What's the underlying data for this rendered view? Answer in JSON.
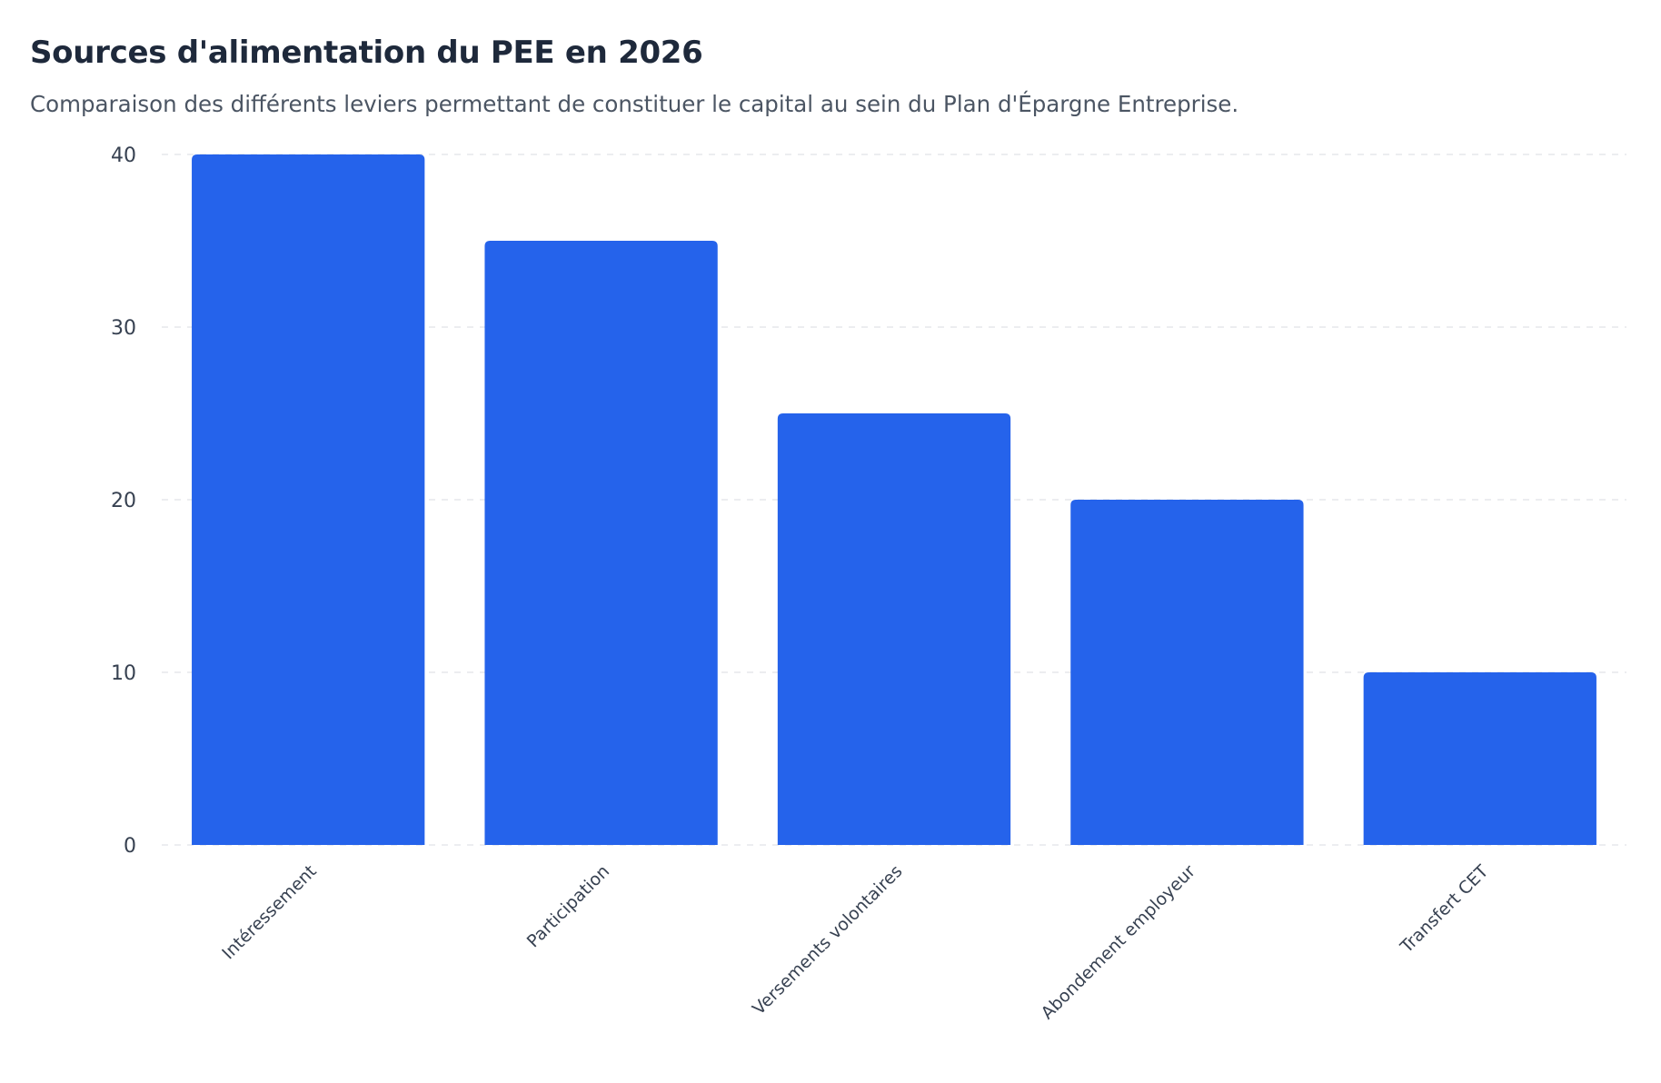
{
  "chart_data": {
    "type": "bar",
    "title": "Sources d'alimentation du PEE en 2026",
    "subtitle": "Comparaison des différents leviers permettant de constituer le capital au sein du Plan d'Épargne Entreprise.",
    "categories": [
      "Intéressement",
      "Participation",
      "Versements volontaires",
      "Abondement employeur",
      "Transfert CET"
    ],
    "values": [
      40,
      35,
      25,
      20,
      10
    ],
    "xlabel": "",
    "ylabel": "",
    "ylim": [
      0,
      40
    ],
    "yticks": [
      0,
      10,
      20,
      30,
      40
    ],
    "grid": true,
    "legend": "none",
    "bar_color": "#2563eb",
    "grid_color": "#e5e7eb"
  }
}
